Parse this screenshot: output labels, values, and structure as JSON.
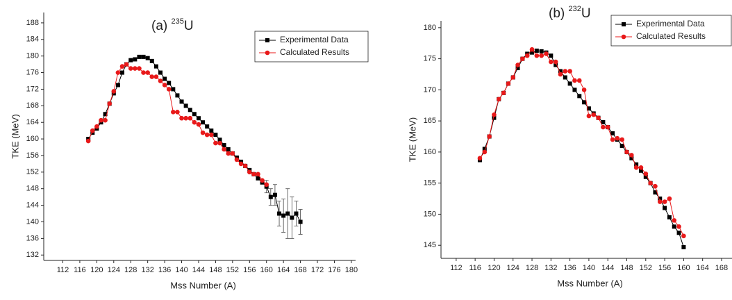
{
  "chart_data": [
    {
      "type": "line",
      "title": {
        "prefix": "(a)",
        "mass": "235",
        "element": "U"
      },
      "xlabel": "Mss Number (A)",
      "ylabel": "TKE (MeV)",
      "xlim": [
        107.5,
        181
      ],
      "xticks": [
        112,
        116,
        120,
        124,
        128,
        132,
        136,
        140,
        144,
        148,
        152,
        156,
        160,
        164,
        168,
        172,
        176,
        180
      ],
      "ylim": [
        130.7,
        190.5
      ],
      "yticks": [
        132,
        136,
        140,
        144,
        148,
        152,
        156,
        160,
        164,
        168,
        172,
        176,
        180,
        184,
        188
      ],
      "legend": "top-right",
      "series": [
        {
          "name": "Experimental Data",
          "color": "#000000",
          "marker": "square",
          "x": [
            118,
            119,
            120,
            121,
            122,
            123,
            124,
            125,
            126,
            127,
            128,
            129,
            130,
            131,
            132,
            133,
            134,
            135,
            136,
            137,
            138,
            139,
            140,
            141,
            142,
            143,
            144,
            145,
            146,
            147,
            148,
            149,
            150,
            151,
            152,
            153,
            154,
            155,
            156,
            157,
            158,
            159,
            160,
            161,
            162,
            163,
            164,
            165,
            166,
            167,
            168
          ],
          "values": [
            160,
            161.5,
            162.5,
            164,
            166,
            168.5,
            171,
            173,
            176,
            178,
            179,
            179.2,
            179.8,
            179.8,
            179.5,
            178.8,
            177.5,
            176,
            174.5,
            173.5,
            172,
            170.5,
            169,
            168,
            167,
            166,
            165,
            164,
            163,
            162,
            161,
            159.8,
            158.5,
            157.5,
            156.5,
            155.5,
            154.5,
            153.5,
            152.5,
            151.5,
            150.5,
            149.5,
            148.5,
            146,
            146.5,
            142,
            141.5,
            142,
            141,
            142,
            140
          ],
          "errors": [
            null,
            null,
            null,
            null,
            null,
            null,
            null,
            null,
            null,
            null,
            null,
            null,
            null,
            null,
            null,
            null,
            null,
            null,
            null,
            null,
            null,
            null,
            null,
            null,
            null,
            null,
            null,
            null,
            null,
            null,
            null,
            null,
            null,
            null,
            null,
            null,
            null,
            null,
            null,
            null,
            null,
            null,
            1.5,
            2,
            2.5,
            3,
            4,
            6,
            5,
            3,
            3
          ]
        },
        {
          "name": "Calculated Results",
          "color": "#e8191a",
          "marker": "circle",
          "x": [
            118,
            119,
            120,
            121,
            122,
            123,
            124,
            125,
            126,
            127,
            128,
            129,
            130,
            131,
            132,
            133,
            134,
            135,
            136,
            137,
            138,
            139,
            140,
            141,
            142,
            143,
            144,
            145,
            146,
            147,
            148,
            149,
            150,
            151,
            152,
            153,
            154,
            155,
            156,
            157,
            158,
            159,
            160
          ],
          "values": [
            159.5,
            162,
            163,
            164.5,
            164.5,
            168.5,
            171.5,
            176,
            177.5,
            178,
            177,
            177,
            177,
            176,
            176,
            175,
            175,
            174,
            173,
            172,
            166.5,
            166.5,
            165,
            165,
            165,
            164,
            163.5,
            161.5,
            161,
            161,
            159,
            159,
            157.5,
            156.5,
            156.5,
            155,
            154,
            153.5,
            152,
            151.5,
            151.5,
            150,
            149
          ]
        }
      ]
    },
    {
      "type": "line",
      "title": {
        "prefix": "(b)",
        "mass": "232",
        "element": "U"
      },
      "xlabel": "Mss Number (A)",
      "ylabel": "TKE (MeV)",
      "xlim": [
        108.8,
        170.2
      ],
      "xticks": [
        112,
        116,
        120,
        124,
        128,
        132,
        136,
        140,
        144,
        148,
        152,
        156,
        160,
        164,
        168
      ],
      "ylim": [
        142.9,
        181.1
      ],
      "yticks": [
        145,
        150,
        155,
        160,
        165,
        170,
        175,
        180
      ],
      "legend": "top-right",
      "series": [
        {
          "name": "Experimental Data",
          "color": "#000000",
          "marker": "square",
          "x": [
            117,
            118,
            119,
            120,
            121,
            122,
            123,
            124,
            125,
            126,
            127,
            128,
            129,
            130,
            131,
            132,
            133,
            134,
            135,
            136,
            137,
            138,
            139,
            140,
            141,
            142,
            143,
            144,
            145,
            146,
            147,
            148,
            149,
            150,
            151,
            152,
            153,
            154,
            155,
            156,
            157,
            158,
            159,
            160
          ],
          "values": [
            158.7,
            160.5,
            162.5,
            165.5,
            168.5,
            169.5,
            171,
            172,
            173.5,
            175,
            175.8,
            176,
            176.3,
            176.2,
            176,
            175.5,
            174,
            173,
            172,
            171,
            170,
            169,
            168,
            167,
            166.2,
            165.5,
            164.8,
            164,
            163,
            162,
            161,
            160,
            159,
            158,
            157,
            156,
            155,
            153.5,
            152.5,
            151,
            149.5,
            148,
            147,
            144.7
          ]
        },
        {
          "name": "Calculated Results",
          "color": "#e8191a",
          "marker": "circle",
          "x": [
            117,
            118,
            119,
            120,
            121,
            122,
            123,
            124,
            125,
            126,
            127,
            128,
            129,
            130,
            131,
            132,
            133,
            134,
            135,
            136,
            137,
            138,
            139,
            140,
            141,
            142,
            143,
            144,
            145,
            146,
            147,
            148,
            149,
            150,
            151,
            152,
            153,
            154,
            155,
            156,
            157,
            158,
            159,
            160
          ],
          "values": [
            159,
            160,
            162.5,
            166,
            168.5,
            169.5,
            171,
            172,
            174,
            175,
            175.5,
            176.5,
            175.5,
            175.5,
            175.8,
            174.5,
            174.5,
            172.5,
            173,
            173,
            171.5,
            171.5,
            170,
            165.8,
            166,
            165.5,
            164,
            164,
            162,
            162.2,
            162,
            160,
            159.5,
            157.5,
            157.5,
            156.5,
            155,
            154.5,
            152,
            152,
            152.5,
            149,
            148,
            146.5
          ]
        }
      ]
    }
  ]
}
